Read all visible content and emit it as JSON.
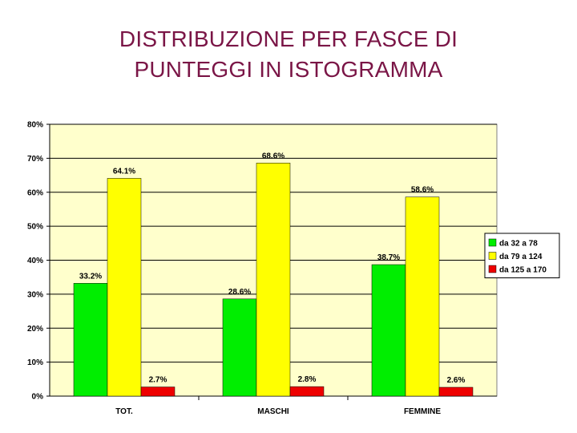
{
  "slide": {
    "title_line1": "DISTRIBUZIONE PER FASCE DI",
    "title_line2": "PUNTEGGI IN ISTOGRAMMA"
  },
  "chart_data": {
    "type": "bar",
    "categories": [
      "TOT.",
      "MASCHI",
      "FEMMINE"
    ],
    "series": [
      {
        "name": "da 32 a 78",
        "color": "#00ee00",
        "values": [
          33.2,
          28.6,
          38.7
        ],
        "labels": [
          "33.2%",
          "28.6%",
          "38.7%"
        ]
      },
      {
        "name": "da 79 a 124",
        "color": "#ffff00",
        "values": [
          64.1,
          68.6,
          58.6
        ],
        "labels": [
          "64.1%",
          "68.6%",
          "58.6%"
        ]
      },
      {
        "name": "da 125 a  170",
        "color": "#ee0000",
        "values": [
          2.7,
          2.8,
          2.6
        ],
        "labels": [
          "2.7%",
          "2.8%",
          "2.6%"
        ]
      }
    ],
    "ylim": [
      0,
      80
    ],
    "yticks": [
      0,
      10,
      20,
      30,
      40,
      50,
      60,
      70,
      80
    ],
    "ytick_labels": [
      "0%",
      "10%",
      "20%",
      "30%",
      "40%",
      "50%",
      "60%",
      "70%",
      "80%"
    ],
    "plot_background": "#ffffcc",
    "grid": true,
    "legend_position": "right"
  }
}
